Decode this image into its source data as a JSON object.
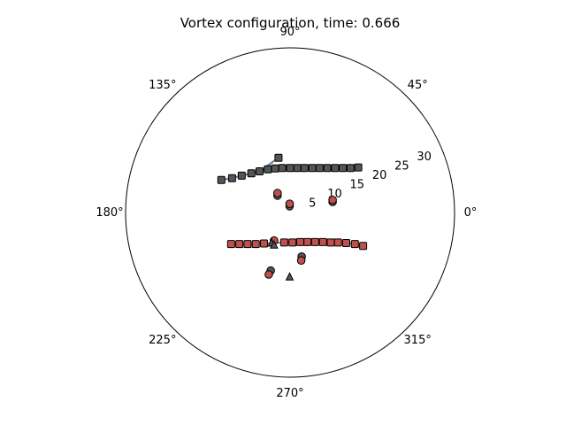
{
  "chart_data": {
    "type": "scatter",
    "projection": "polar",
    "title": "Vortex configuration, time: 0.666",
    "angle_ticks": [
      "0°",
      "45°",
      "90°",
      "135°",
      "180°",
      "225°",
      "270°",
      "315°"
    ],
    "angle_tick_degrees": [
      0,
      45,
      90,
      135,
      180,
      225,
      270,
      315
    ],
    "radial_ticks": [
      "5",
      "10",
      "15",
      "20",
      "25",
      "30"
    ],
    "radial_tick_values": [
      5,
      10,
      15,
      20,
      25,
      30
    ],
    "radial_label_angle_deg": 22.5,
    "rlim": [
      0,
      34
    ],
    "grid": false,
    "colors": {
      "dark": "#555555",
      "red": "#c0504d",
      "line": "#5b7fa6",
      "edge": "#000000"
    },
    "upper_line": {
      "color": "#5b7fa6",
      "points": [
        [
          -14.2,
          6.7
        ],
        [
          -12.0,
          7.1
        ],
        [
          -10.0,
          7.6
        ],
        [
          -8.0,
          8.1
        ],
        [
          -6.3,
          8.5
        ],
        [
          -4.6,
          8.9
        ],
        [
          -3.1,
          9.1
        ],
        [
          -1.6,
          9.2
        ],
        [
          0.0,
          9.2
        ],
        [
          1.5,
          9.2
        ],
        [
          3.0,
          9.2
        ],
        [
          4.6,
          9.2
        ],
        [
          6.1,
          9.2
        ],
        [
          7.7,
          9.2
        ],
        [
          9.3,
          9.2
        ],
        [
          10.9,
          9.2
        ],
        [
          12.5,
          9.2
        ],
        [
          14.1,
          9.3
        ]
      ],
      "branch": [
        [
          -6.3,
          8.5
        ],
        [
          -2.4,
          11.3
        ]
      ]
    },
    "lower_line": {
      "color": "#5b7fa6",
      "points": [
        [
          -12.2,
          -6.5
        ],
        [
          -10.5,
          -6.5
        ],
        [
          -8.8,
          -6.5
        ],
        [
          -7.1,
          -6.5
        ],
        [
          -5.4,
          -6.4
        ],
        [
          -1.2,
          -6.2
        ],
        [
          0.5,
          -6.2
        ],
        [
          2.1,
          -6.1
        ],
        [
          3.6,
          -6.1
        ],
        [
          5.2,
          -6.1
        ],
        [
          6.8,
          -6.1
        ],
        [
          8.4,
          -6.2
        ],
        [
          9.9,
          -6.2
        ],
        [
          11.6,
          -6.3
        ],
        [
          13.4,
          -6.5
        ],
        [
          15.1,
          -6.9
        ]
      ]
    },
    "series": [
      {
        "marker": "square",
        "color": "#555555",
        "points": [
          [
            -14.2,
            6.7
          ],
          [
            -12.0,
            7.1
          ],
          [
            -10.0,
            7.6
          ],
          [
            -8.0,
            8.1
          ],
          [
            -6.3,
            8.5
          ],
          [
            -4.6,
            8.9
          ],
          [
            -3.1,
            9.1
          ],
          [
            -1.6,
            9.2
          ],
          [
            0.0,
            9.2
          ],
          [
            1.5,
            9.2
          ],
          [
            3.0,
            9.2
          ],
          [
            4.6,
            9.2
          ],
          [
            6.1,
            9.2
          ],
          [
            7.7,
            9.2
          ],
          [
            9.3,
            9.2
          ],
          [
            10.9,
            9.2
          ],
          [
            12.5,
            9.2
          ],
          [
            14.1,
            9.3
          ],
          [
            -2.4,
            11.3
          ]
        ]
      },
      {
        "marker": "square",
        "color": "#c0504d",
        "points": [
          [
            -12.2,
            -6.5
          ],
          [
            -10.5,
            -6.5
          ],
          [
            -8.8,
            -6.5
          ],
          [
            -7.1,
            -6.5
          ],
          [
            -5.4,
            -6.4
          ],
          [
            -1.2,
            -6.2
          ],
          [
            0.5,
            -6.2
          ],
          [
            2.1,
            -6.1
          ],
          [
            3.6,
            -6.1
          ],
          [
            5.2,
            -6.1
          ],
          [
            6.8,
            -6.1
          ],
          [
            8.4,
            -6.2
          ],
          [
            9.9,
            -6.2
          ],
          [
            11.6,
            -6.3
          ],
          [
            13.4,
            -6.5
          ],
          [
            15.1,
            -6.9
          ]
        ]
      },
      {
        "marker": "circle",
        "color": "#555555",
        "points": [
          [
            -2.6,
            3.5
          ],
          [
            -0.1,
            1.3
          ],
          [
            8.8,
            2.2
          ],
          [
            2.4,
            -9.1
          ],
          [
            -4.0,
            -12.0
          ]
        ]
      },
      {
        "marker": "circle",
        "color": "#c0504d",
        "points": [
          [
            -2.6,
            4.0
          ],
          [
            -0.1,
            1.8
          ],
          [
            8.8,
            2.6
          ],
          [
            2.3,
            -9.9
          ],
          [
            -4.4,
            -12.8
          ],
          [
            -3.3,
            -5.8
          ]
        ]
      },
      {
        "marker": "triangle",
        "color": "#555555",
        "points": [
          [
            -3.8,
            -6.3
          ],
          [
            -3.3,
            -6.7
          ],
          [
            -0.1,
            -13.3
          ]
        ]
      }
    ]
  }
}
